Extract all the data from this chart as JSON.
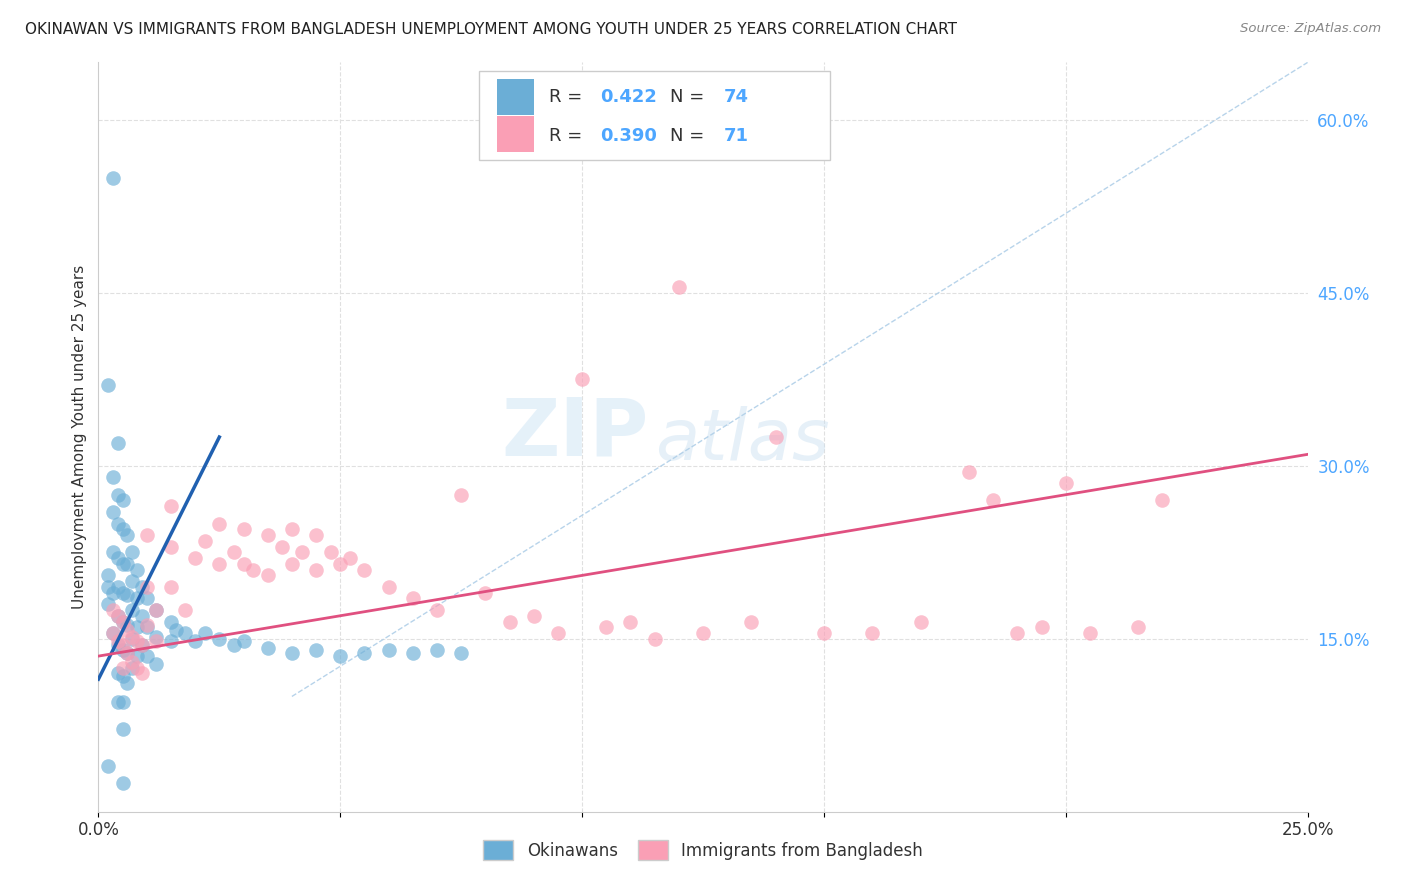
{
  "title": "OKINAWAN VS IMMIGRANTS FROM BANGLADESH UNEMPLOYMENT AMONG YOUTH UNDER 25 YEARS CORRELATION CHART",
  "source": "Source: ZipAtlas.com",
  "ylabel": "Unemployment Among Youth under 25 years",
  "xlim": [
    0.0,
    0.25
  ],
  "ylim": [
    0.0,
    0.65
  ],
  "xtick_positions": [
    0.0,
    0.05,
    0.1,
    0.15,
    0.2,
    0.25
  ],
  "xticklabels": [
    "0.0%",
    "",
    "",
    "",
    "",
    "25.0%"
  ],
  "yticks_right": [
    0.15,
    0.3,
    0.45,
    0.6
  ],
  "ytick_right_labels": [
    "15.0%",
    "30.0%",
    "45.0%",
    "60.0%"
  ],
  "blue_color": "#6baed6",
  "pink_color": "#fa9fb5",
  "blue_line_x": [
    0.0,
    0.025
  ],
  "blue_line_y": [
    0.115,
    0.325
  ],
  "pink_line_x": [
    0.0,
    0.25
  ],
  "pink_line_y": [
    0.135,
    0.31
  ],
  "diag_line_x": [
    0.04,
    0.25
  ],
  "diag_line_y": [
    0.1,
    0.65
  ],
  "legend_blue_R": "0.422",
  "legend_blue_N": "74",
  "legend_pink_R": "0.390",
  "legend_pink_N": "71",
  "legend_label_blue": "Okinawans",
  "legend_label_pink": "Immigrants from Bangladesh",
  "watermark_zip": "ZIP",
  "watermark_atlas": "atlas",
  "background_color": "#ffffff",
  "grid_color": "#e0e0e0",
  "blue_scatter_x": [
    0.002,
    0.002,
    0.002,
    0.002,
    0.003,
    0.003,
    0.003,
    0.003,
    0.003,
    0.004,
    0.004,
    0.004,
    0.004,
    0.004,
    0.004,
    0.004,
    0.004,
    0.005,
    0.005,
    0.005,
    0.005,
    0.005,
    0.005,
    0.005,
    0.005,
    0.005,
    0.006,
    0.006,
    0.006,
    0.006,
    0.006,
    0.006,
    0.007,
    0.007,
    0.007,
    0.007,
    0.007,
    0.008,
    0.008,
    0.008,
    0.008,
    0.009,
    0.009,
    0.009,
    0.01,
    0.01,
    0.01,
    0.012,
    0.012,
    0.012,
    0.015,
    0.015,
    0.016,
    0.018,
    0.02,
    0.022,
    0.025,
    0.028,
    0.03,
    0.035,
    0.04,
    0.045,
    0.05,
    0.055,
    0.06,
    0.065,
    0.07,
    0.075,
    0.002,
    0.003,
    0.004,
    0.005
  ],
  "blue_scatter_y": [
    0.205,
    0.195,
    0.18,
    0.04,
    0.29,
    0.26,
    0.225,
    0.19,
    0.155,
    0.275,
    0.25,
    0.22,
    0.195,
    0.17,
    0.145,
    0.12,
    0.095,
    0.27,
    0.245,
    0.215,
    0.19,
    0.165,
    0.14,
    0.118,
    0.095,
    0.072,
    0.24,
    0.215,
    0.188,
    0.162,
    0.138,
    0.112,
    0.225,
    0.2,
    0.175,
    0.15,
    0.125,
    0.21,
    0.185,
    0.16,
    0.135,
    0.195,
    0.17,
    0.145,
    0.185,
    0.16,
    0.135,
    0.175,
    0.152,
    0.128,
    0.165,
    0.148,
    0.158,
    0.155,
    0.148,
    0.155,
    0.15,
    0.145,
    0.148,
    0.142,
    0.138,
    0.14,
    0.135,
    0.138,
    0.14,
    0.138,
    0.14,
    0.138,
    0.37,
    0.55,
    0.32,
    0.025
  ],
  "pink_scatter_x": [
    0.003,
    0.003,
    0.004,
    0.004,
    0.005,
    0.005,
    0.005,
    0.006,
    0.006,
    0.007,
    0.007,
    0.008,
    0.008,
    0.009,
    0.009,
    0.01,
    0.01,
    0.01,
    0.012,
    0.012,
    0.015,
    0.015,
    0.015,
    0.018,
    0.02,
    0.022,
    0.025,
    0.025,
    0.028,
    0.03,
    0.03,
    0.032,
    0.035,
    0.035,
    0.038,
    0.04,
    0.04,
    0.042,
    0.045,
    0.045,
    0.048,
    0.05,
    0.052,
    0.055,
    0.06,
    0.065,
    0.07,
    0.075,
    0.08,
    0.085,
    0.09,
    0.095,
    0.1,
    0.105,
    0.11,
    0.115,
    0.12,
    0.125,
    0.135,
    0.14,
    0.15,
    0.16,
    0.17,
    0.18,
    0.185,
    0.19,
    0.195,
    0.2,
    0.205,
    0.215,
    0.22
  ],
  "pink_scatter_y": [
    0.175,
    0.155,
    0.17,
    0.148,
    0.165,
    0.145,
    0.125,
    0.158,
    0.138,
    0.152,
    0.13,
    0.148,
    0.125,
    0.145,
    0.12,
    0.24,
    0.195,
    0.162,
    0.175,
    0.148,
    0.265,
    0.23,
    0.195,
    0.175,
    0.22,
    0.235,
    0.25,
    0.215,
    0.225,
    0.245,
    0.215,
    0.21,
    0.24,
    0.205,
    0.23,
    0.245,
    0.215,
    0.225,
    0.24,
    0.21,
    0.225,
    0.215,
    0.22,
    0.21,
    0.195,
    0.185,
    0.175,
    0.275,
    0.19,
    0.165,
    0.17,
    0.155,
    0.375,
    0.16,
    0.165,
    0.15,
    0.455,
    0.155,
    0.165,
    0.325,
    0.155,
    0.155,
    0.165,
    0.295,
    0.27,
    0.155,
    0.16,
    0.285,
    0.155,
    0.16,
    0.27
  ]
}
